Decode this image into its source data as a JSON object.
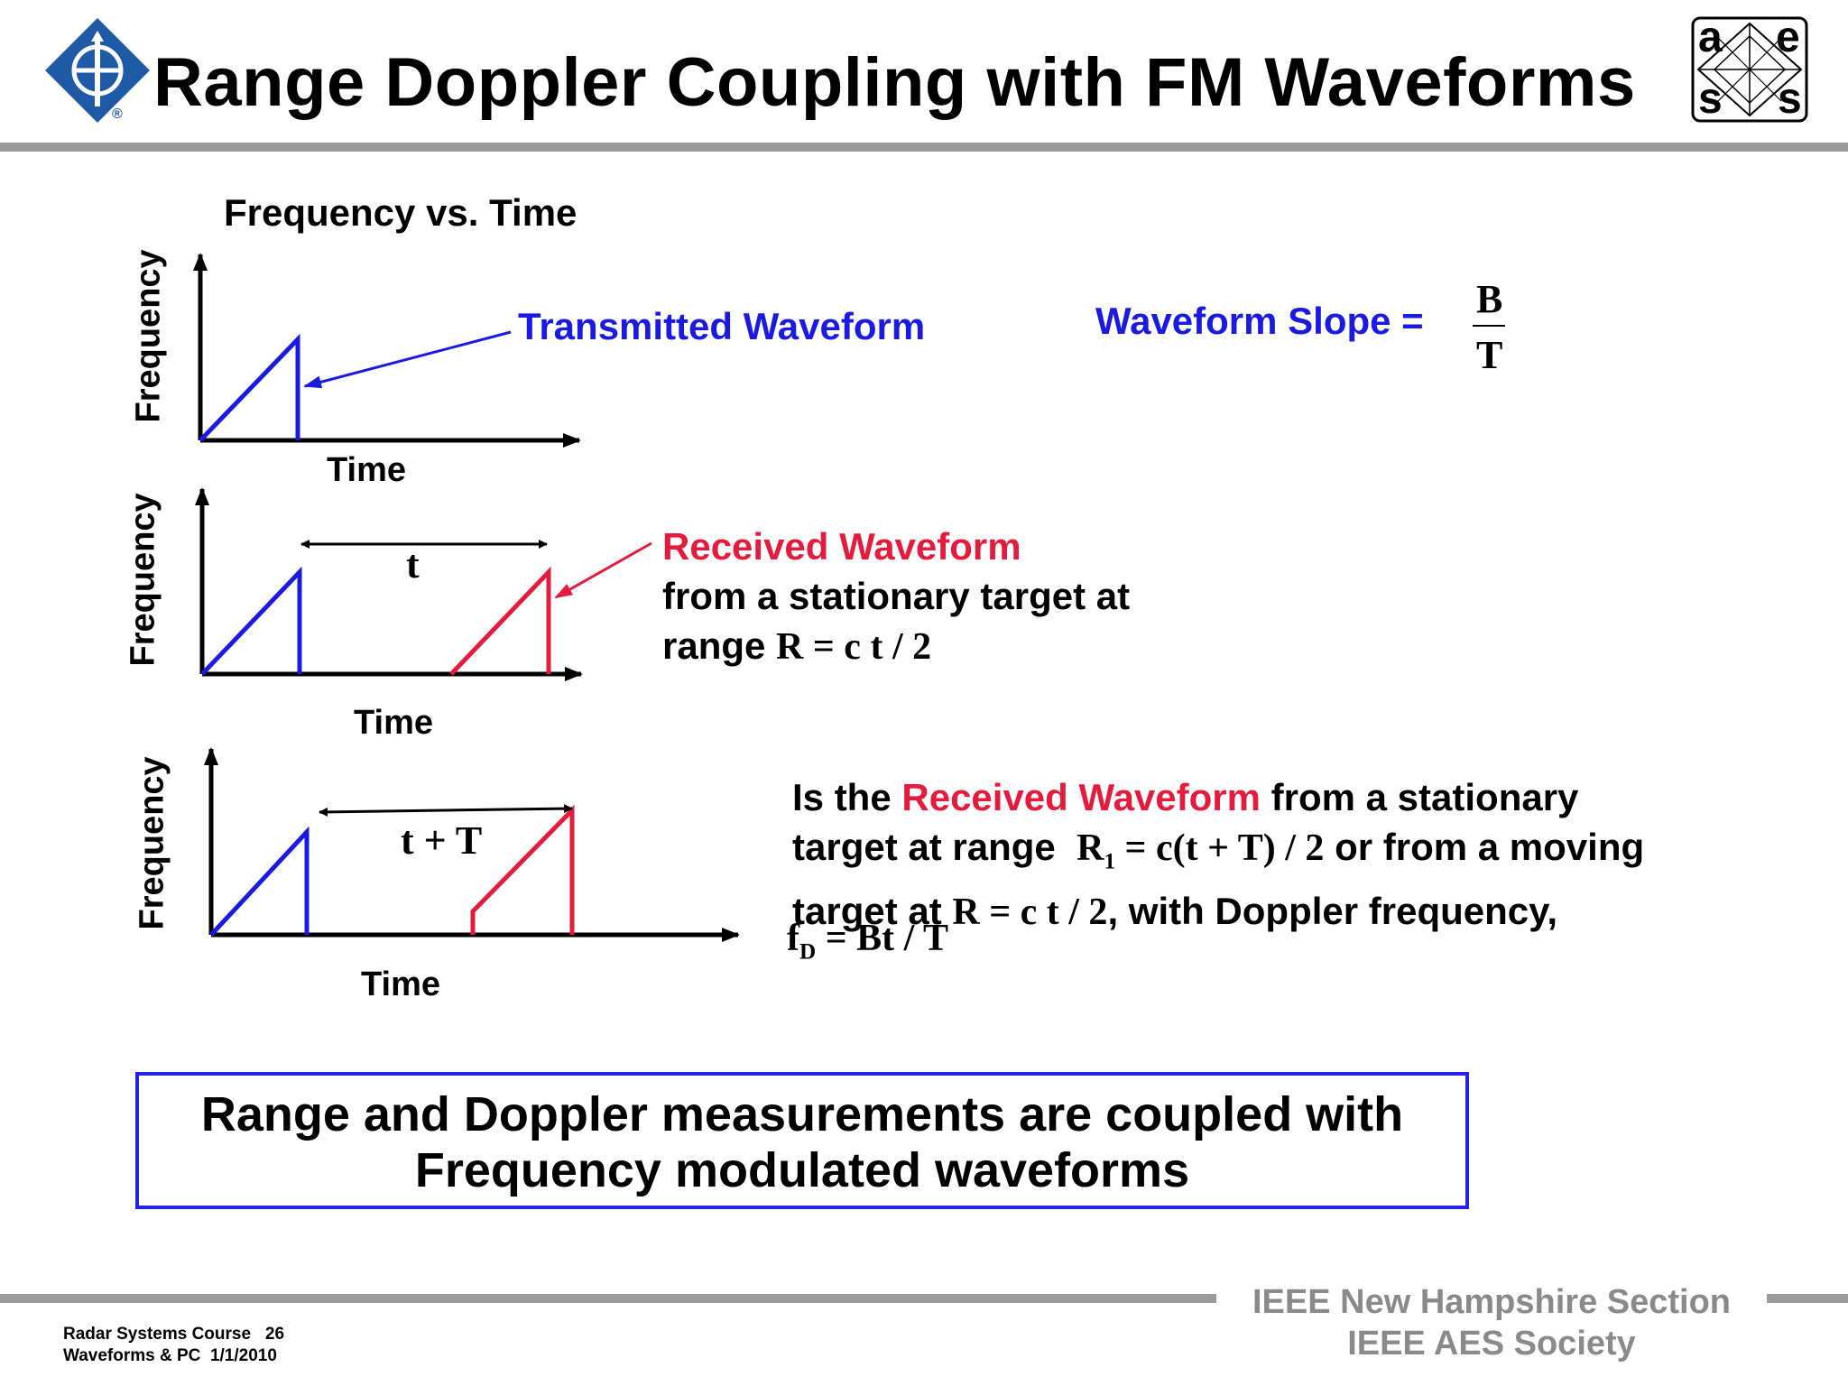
{
  "slide": {
    "title": "Range Doppler Coupling with FM Waveforms",
    "subtitle": "Frequency vs. Time"
  },
  "logos": {
    "ieee": {
      "icon": "ieee-logo-icon",
      "color": "#1f5aa6",
      "mark": "®"
    },
    "aes": {
      "icon": "aes-logo-icon",
      "letters": [
        "a",
        "e",
        "s",
        "s"
      ]
    }
  },
  "graph1": {
    "ylabel": "Frequency",
    "xlabel": "Time",
    "callout": "Transmitted Waveform"
  },
  "graph2": {
    "ylabel": "Frequency",
    "xlabel": "Time",
    "delay_label": "t",
    "callout_title": "Received Waveform",
    "callout_line2": "from a stationary target at",
    "callout_line3_prefix": "range",
    "callout_line3_formula": "R = c t / 2"
  },
  "graph3": {
    "ylabel": "Frequency",
    "xlabel": "Time",
    "delay_label": "t + T"
  },
  "slope": {
    "label": "Waveform Slope =",
    "numerator": "B",
    "denominator": "T"
  },
  "question": {
    "part1": "Is the",
    "part2": "Received Waveform",
    "part3": "from a stationary",
    "line2_prefix": "target at range",
    "r1_base": "R",
    "r1_sub": "1",
    "r1_rest": "= c(t + T) / 2",
    "line2_suffix": "or from a moving",
    "line3_prefix": "target at",
    "line3_formula": "R = c t / 2",
    "line3_suffix": ", with Doppler frequency,",
    "fd_base": "f",
    "fd_sub": "D",
    "fd_rest": "= Bt / T"
  },
  "conclusion": {
    "line1": "Range and Doppler measurements are coupled with",
    "line2": "Frequency modulated waveforms"
  },
  "footer": {
    "course": "Radar Systems Course",
    "page": "26",
    "section": "Waveforms & PC  1/1/2010",
    "org1": "IEEE New Hampshire Section",
    "org2": "IEEE AES Society"
  },
  "colors": {
    "transmitted": "#1a1ae0",
    "received": "#e41b3c",
    "text_blue": "#1a1ae0",
    "text_red": "#e41b3c",
    "rule": "#9a9a9a",
    "box_border": "#2323e6"
  }
}
